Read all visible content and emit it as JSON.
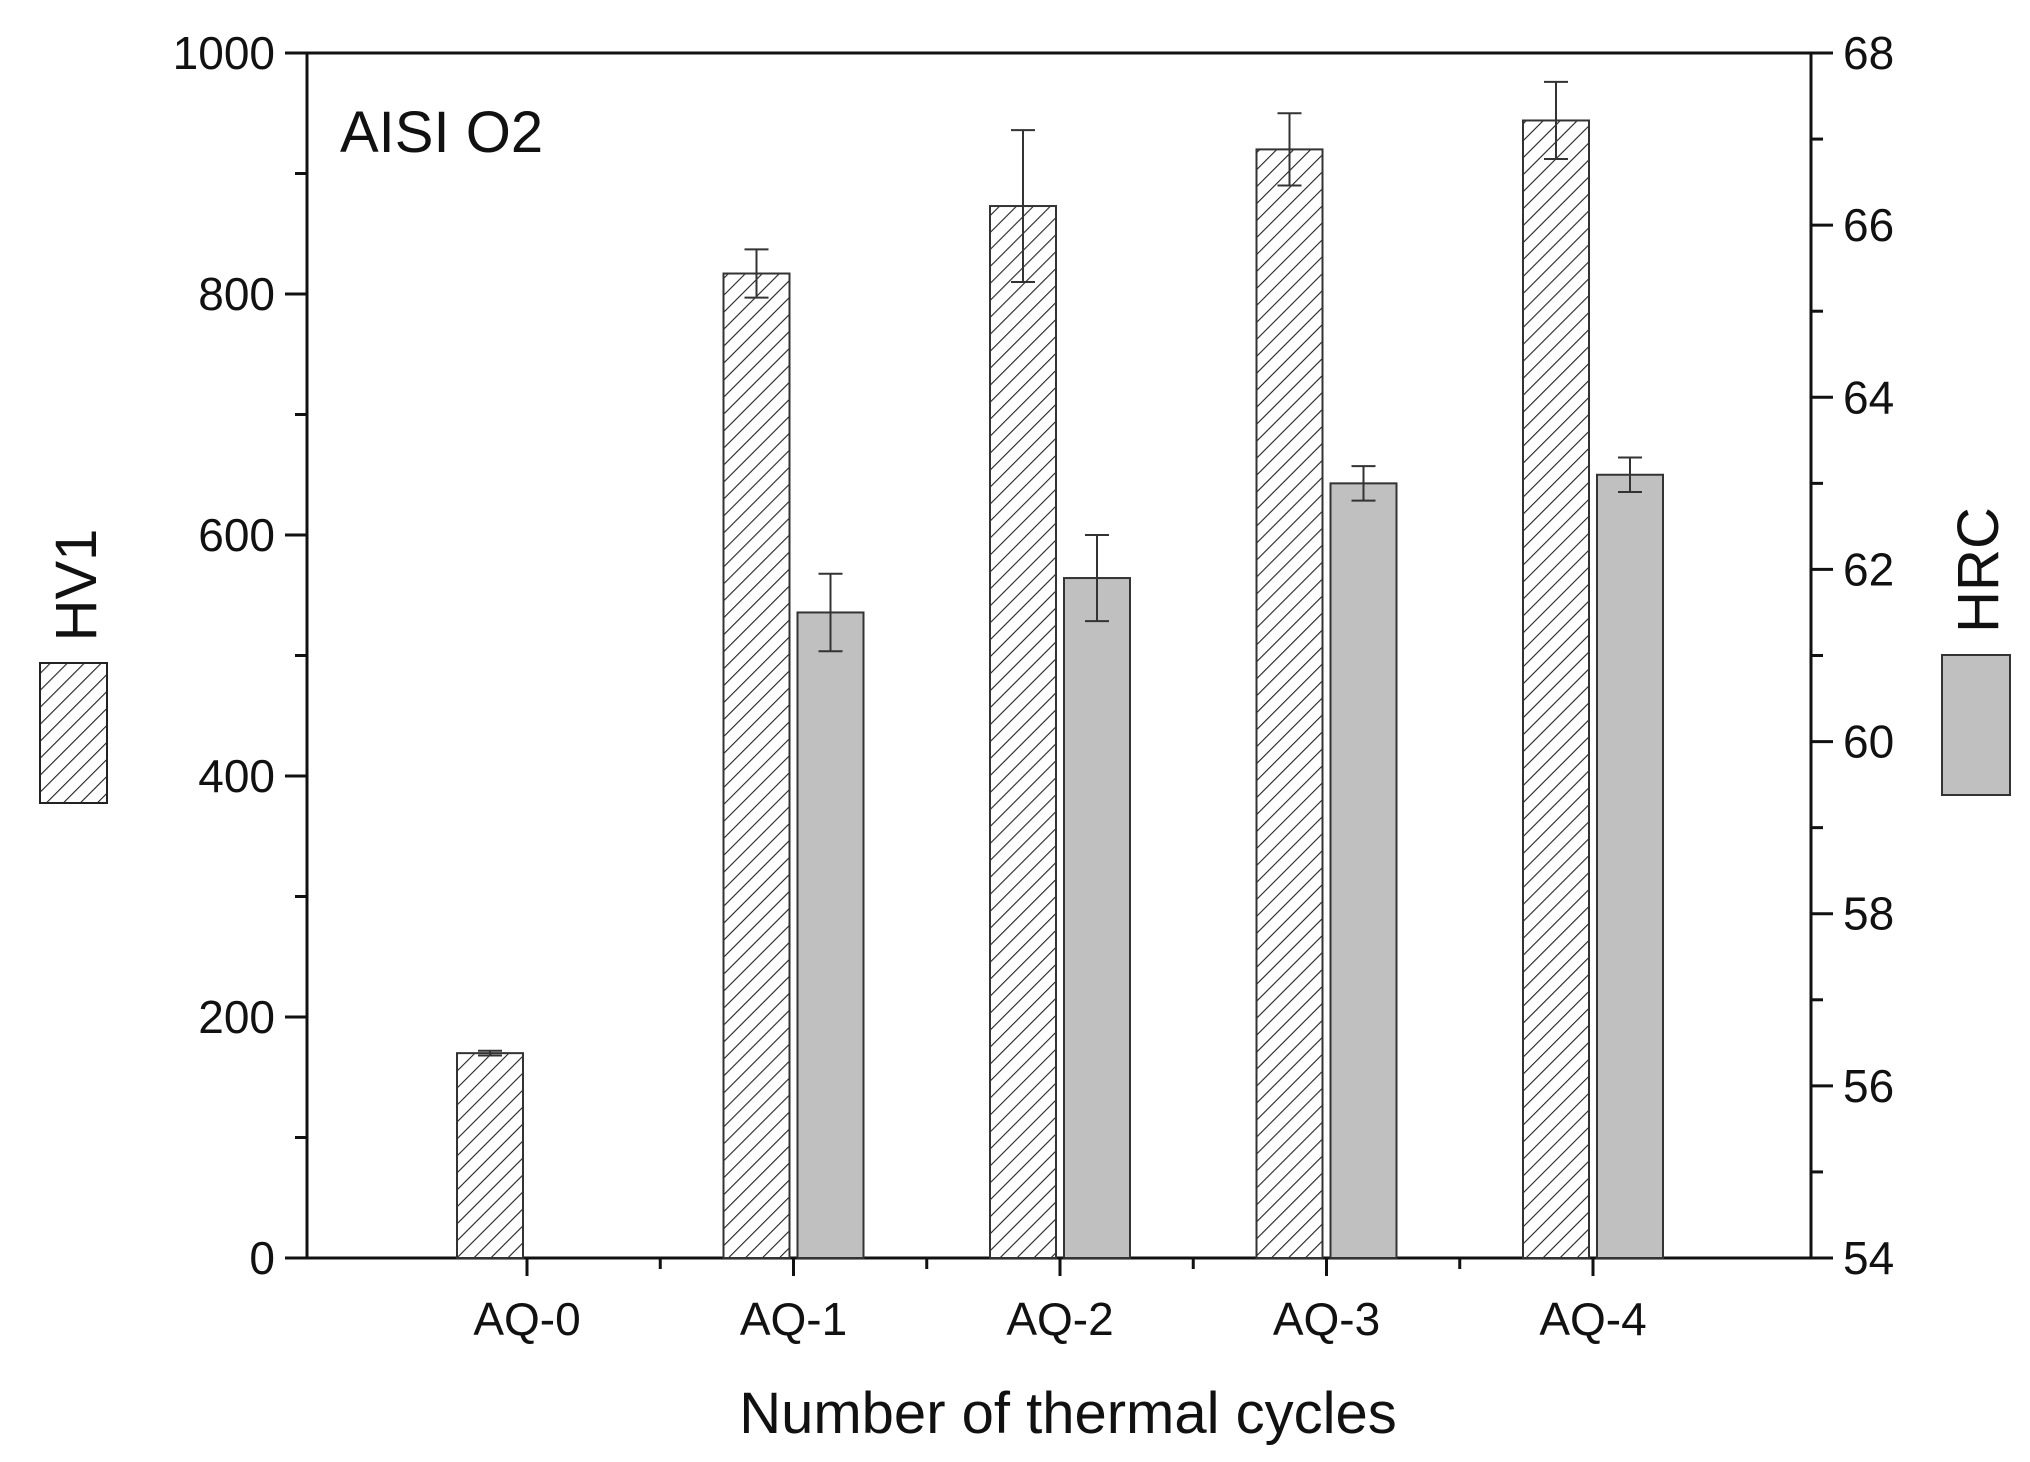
{
  "chart_data": {
    "type": "bar",
    "annotation": "AISI O2",
    "xlabel": "Number of thermal cycles",
    "categories": [
      "AQ-0",
      "AQ-1",
      "AQ-2",
      "AQ-3",
      "AQ-4"
    ],
    "left_axis": {
      "label": "HV1",
      "ylim": [
        0,
        1000
      ],
      "ticks": [
        "0",
        "200",
        "400",
        "600",
        "800",
        "1000"
      ],
      "tick_values": [
        0,
        200,
        400,
        600,
        800,
        1000
      ],
      "minor_step": 100
    },
    "right_axis": {
      "label": "HRC",
      "ylim": [
        54,
        68
      ],
      "ticks": [
        "54",
        "56",
        "58",
        "60",
        "62",
        "64",
        "66",
        "68"
      ],
      "tick_values": [
        54,
        56,
        58,
        60,
        62,
        64,
        66,
        68
      ],
      "minor_step": 1
    },
    "series": [
      {
        "name": "HV1",
        "axis": "left",
        "pattern": "hatched",
        "values": [
          170,
          817,
          873,
          920,
          944
        ],
        "errors": [
          2,
          20,
          63,
          30,
          32
        ]
      },
      {
        "name": "HRC",
        "axis": "right",
        "pattern": "solid-gray",
        "values": [
          null,
          61.5,
          61.9,
          63.0,
          63.1
        ],
        "errors": [
          null,
          0.45,
          0.5,
          0.2,
          0.2
        ]
      }
    ]
  },
  "colors": {
    "hrc_fill": "#c0c0c0",
    "hatch_line": "#222222",
    "axis": "#111111"
  }
}
